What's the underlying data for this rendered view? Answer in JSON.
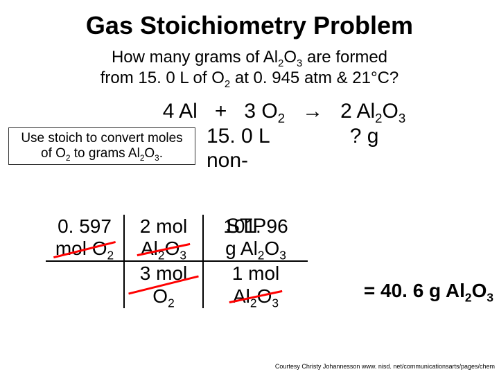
{
  "colors": {
    "bg": "#ffffff",
    "text": "#000000",
    "strike": "#ff0000",
    "border": "#000000"
  },
  "typography": {
    "title_fontsize": 36,
    "question_fontsize": 24,
    "equation_fontsize": 30,
    "hint_fontsize": 19,
    "stoich_fontsize": 28,
    "answer_fontsize": 28,
    "courtesy_fontsize": 9,
    "font_family": "Arial"
  },
  "title": "Gas Stoichiometry Problem",
  "question_line1_a": "How many grams of Al",
  "question_line1_b": "O",
  "question_line1_c": " are formed",
  "question_line2_a": "from 15. 0 L of O",
  "question_line2_b": " at 0. 945 atm & 21°C?",
  "equation": {
    "r1a": "4 Al",
    "plus": " + ",
    "r2a": "3 O",
    "arrow": " → ",
    "p1a": "2 Al",
    "p1b": "O"
  },
  "given_vol": "15. 0 L",
  "unknown": "? g",
  "nonstp1": "non-",
  "nonstp2": "STP",
  "hint_l1_a": "Use stoich to convert moles",
  "hint_l2_a": "of O",
  "hint_l2_b": " to grams Al",
  "hint_l2_c": "O",
  "hint_l2_d": ".",
  "stoich": {
    "r1c1_a": "0. 597",
    "r1c1_b": "mol O",
    "r1c2_a": "2 mol",
    "r1c2_b": "Al",
    "r1c2_c": "O",
    "r1c3_a": "101. 96",
    "r1c3_b": "g Al",
    "r1c3_c": "O",
    "r2c2_a": "3 mol O",
    "r2c3_a": "1 mol",
    "r2c3_b": "Al",
    "r2c3_c": "O"
  },
  "answer_a": "= 40. 6 g Al",
  "answer_b": "O",
  "courtesy": "Courtesy Christy Johannesson www. nisd. net/communicationsarts/pages/chem",
  "subs": {
    "two": "2",
    "three": "3"
  }
}
